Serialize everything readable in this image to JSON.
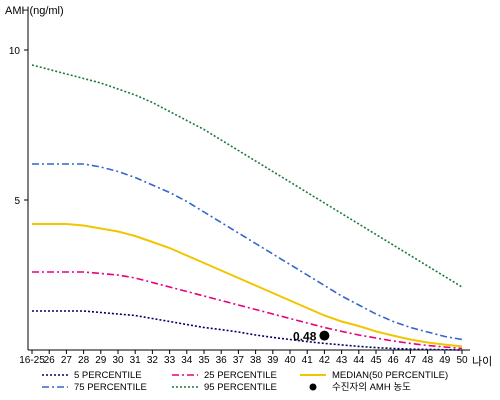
{
  "chart_data": {
    "type": "line",
    "ylabel": "AMH(ng/ml)",
    "xlabel": "나이",
    "ylim": [
      0,
      11
    ],
    "yticks": [
      10,
      5
    ],
    "categories": [
      "16-25",
      "26",
      "27",
      "28",
      "29",
      "30",
      "31",
      "32",
      "33",
      "34",
      "35",
      "36",
      "37",
      "38",
      "39",
      "40",
      "41",
      "42",
      "43",
      "44",
      "45",
      "46",
      "47",
      "48",
      "49",
      "50"
    ],
    "series": [
      {
        "name": "5 PERCENTILE",
        "color": "#000066",
        "dash": "2,2",
        "values": [
          1.3,
          1.3,
          1.3,
          1.3,
          1.25,
          1.2,
          1.15,
          1.05,
          0.95,
          0.85,
          0.75,
          0.68,
          0.6,
          0.5,
          0.42,
          0.35,
          0.28,
          0.22,
          0.17,
          0.12,
          0.08,
          0.05,
          0.03,
          0.02,
          0.01,
          0.0
        ]
      },
      {
        "name": "75 PERCENTILE",
        "color": "#3366cc",
        "dash": "7,3,2,3",
        "values": [
          6.2,
          6.2,
          6.2,
          6.2,
          6.1,
          5.95,
          5.75,
          5.5,
          5.25,
          4.95,
          4.6,
          4.25,
          3.9,
          3.55,
          3.2,
          2.85,
          2.5,
          2.15,
          1.8,
          1.5,
          1.2,
          0.95,
          0.75,
          0.6,
          0.45,
          0.35
        ]
      },
      {
        "name": "25 PERCENTILE",
        "color": "#e6007e",
        "dash": "7,3,2,3",
        "values": [
          2.6,
          2.6,
          2.6,
          2.6,
          2.55,
          2.5,
          2.4,
          2.25,
          2.1,
          1.95,
          1.8,
          1.65,
          1.5,
          1.35,
          1.2,
          1.05,
          0.9,
          0.75,
          0.62,
          0.5,
          0.4,
          0.3,
          0.22,
          0.15,
          0.1,
          0.05
        ]
      },
      {
        "name": "95 PERCENTILE",
        "color": "#1a7a3a",
        "dash": "2,2",
        "values": [
          9.5,
          9.35,
          9.2,
          9.05,
          8.9,
          8.7,
          8.5,
          8.25,
          7.95,
          7.65,
          7.35,
          7.0,
          6.65,
          6.3,
          5.95,
          5.6,
          5.25,
          4.9,
          4.55,
          4.2,
          3.85,
          3.5,
          3.15,
          2.8,
          2.45,
          2.1
        ]
      },
      {
        "name": "MEDIAN(50 PERCENTILE)",
        "color": "#f2c500",
        "dash": "",
        "values": [
          4.2,
          4.2,
          4.2,
          4.15,
          4.05,
          3.95,
          3.8,
          3.6,
          3.4,
          3.15,
          2.9,
          2.65,
          2.4,
          2.15,
          1.9,
          1.65,
          1.4,
          1.15,
          0.95,
          0.8,
          0.62,
          0.48,
          0.35,
          0.25,
          0.18,
          0.12
        ]
      }
    ],
    "points": [
      {
        "name": "수진자의 AMH 농도",
        "x": "42",
        "y": 0.48,
        "label": "0.48"
      }
    ],
    "legend_position": "bottom",
    "grid": false
  }
}
